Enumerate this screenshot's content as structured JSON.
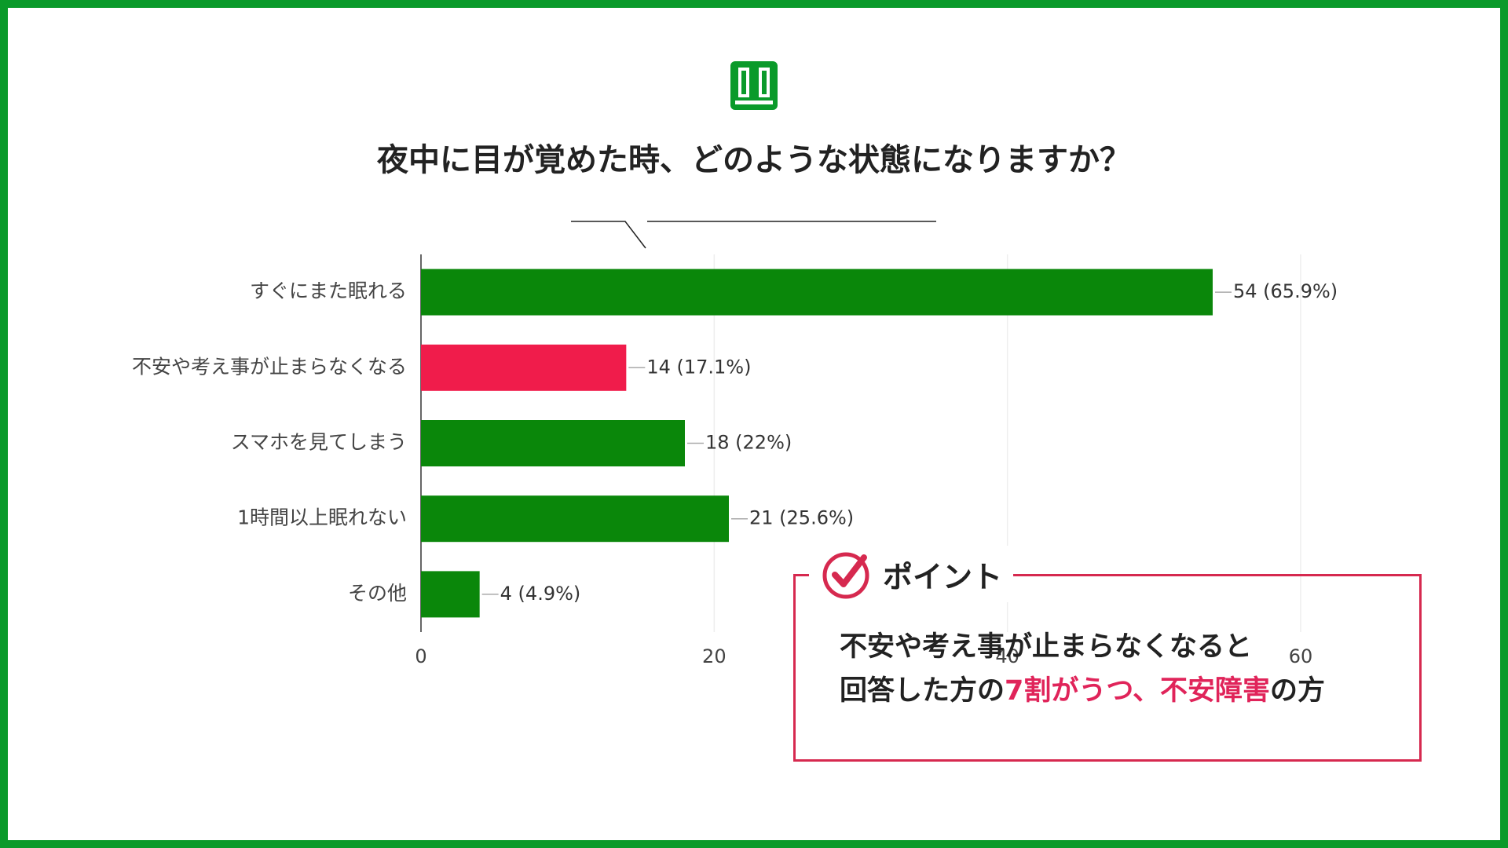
{
  "chart_data": {
    "type": "bar",
    "orientation": "horizontal",
    "title": "夜中に目が覚めた時、どのような状態になりますか？",
    "categories": [
      "すぐにまた眠れる",
      "不安や考え事が止まらなくなる",
      "スマホを見てしまう",
      "1時間以上眠れない",
      "その他"
    ],
    "values": [
      54,
      14,
      18,
      21,
      4
    ],
    "value_labels": [
      "54 (65.9%)",
      "14 (17.1%)",
      "18 (22%)",
      "21 (25.6%)",
      "4 (4.9%)"
    ],
    "colors": [
      "#0a870a",
      "#f01c4b",
      "#0a870a",
      "#0a870a",
      "#0a870a"
    ],
    "xlim": [
      0,
      60
    ],
    "xticks": [
      0,
      20,
      40,
      60
    ],
    "grid": true
  },
  "callout": {
    "heading": "ポイント",
    "lines": [
      [
        "不安や考え事が止まらなくなると"
      ],
      [
        "回答した方の",
        "7割がうつ、",
        "不安障害",
        "の方"
      ]
    ]
  }
}
